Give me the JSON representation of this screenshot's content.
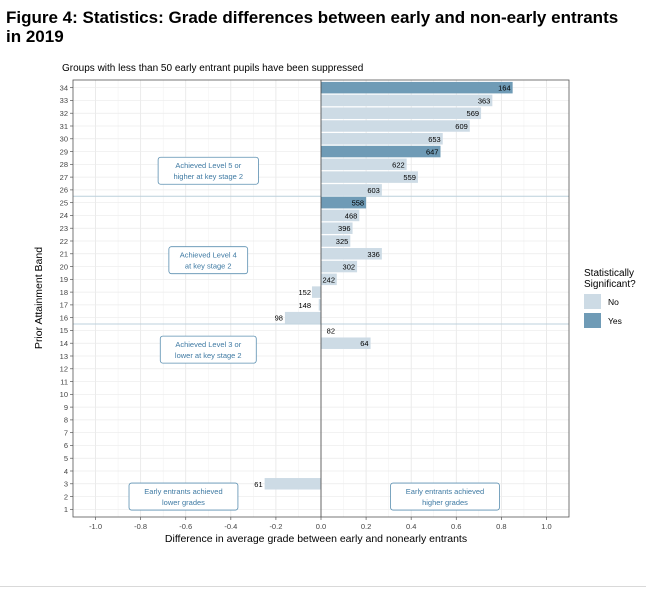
{
  "figure": {
    "title": "Figure 4: Statistics: Grade differences between early and non-early entrants in 2019"
  },
  "chart_data": {
    "type": "bar",
    "orientation": "horizontal",
    "subtitle": "Groups with less than 50 early entrant pupils have been suppressed",
    "xlabel": "Difference in average grade between early and nonearly entrants",
    "ylabel": "Prior Attainment Band",
    "xlim": [
      -1.1,
      1.1
    ],
    "xticks": [
      -1.0,
      -0.8,
      -0.6,
      -0.4,
      -0.2,
      0.0,
      0.2,
      0.4,
      0.6,
      0.8,
      1.0
    ],
    "xtick_labels": [
      "-1.0",
      "-0.8",
      "-0.6",
      "-0.4",
      "-0.2",
      "0.0",
      "0.2",
      "0.4",
      "0.6",
      "0.8",
      "1.0"
    ],
    "categories": [
      "1",
      "2",
      "3",
      "4",
      "5",
      "6",
      "7",
      "8",
      "9",
      "10",
      "11",
      "12",
      "13",
      "14",
      "15",
      "16",
      "17",
      "18",
      "19",
      "20",
      "21",
      "22",
      "23",
      "24",
      "25",
      "26",
      "27",
      "28",
      "29",
      "30",
      "31",
      "32",
      "33",
      "34"
    ],
    "grid": true,
    "legend": {
      "title": "Statistically Significant?",
      "position": "right",
      "entries": [
        {
          "label": "No",
          "color": "#cddbe5"
        },
        {
          "label": "Yes",
          "color": "#6f9bb6"
        }
      ]
    },
    "bars": [
      {
        "band": "3",
        "value": -0.25,
        "label": "61",
        "significant": false
      },
      {
        "band": "14",
        "value": 0.22,
        "label": "64",
        "significant": false
      },
      {
        "band": "15",
        "value": 0.0,
        "label": "82",
        "significant": false
      },
      {
        "band": "16",
        "value": -0.16,
        "label": "98",
        "significant": false
      },
      {
        "band": "17",
        "value": -0.01,
        "label": "148",
        "significant": false
      },
      {
        "band": "18",
        "value": -0.04,
        "label": "152",
        "significant": false
      },
      {
        "band": "19",
        "value": 0.07,
        "label": "242",
        "significant": false
      },
      {
        "band": "20",
        "value": 0.16,
        "label": "302",
        "significant": false
      },
      {
        "band": "21",
        "value": 0.27,
        "label": "336",
        "significant": false
      },
      {
        "band": "22",
        "value": 0.13,
        "label": "325",
        "significant": false
      },
      {
        "band": "23",
        "value": 0.14,
        "label": "396",
        "significant": false
      },
      {
        "band": "24",
        "value": 0.17,
        "label": "468",
        "significant": false
      },
      {
        "band": "25",
        "value": 0.2,
        "label": "558",
        "significant": true
      },
      {
        "band": "26",
        "value": 0.27,
        "label": "603",
        "significant": false
      },
      {
        "band": "27",
        "value": 0.43,
        "label": "559",
        "significant": false
      },
      {
        "band": "28",
        "value": 0.38,
        "label": "622",
        "significant": false
      },
      {
        "band": "29",
        "value": 0.53,
        "label": "647",
        "significant": true
      },
      {
        "band": "30",
        "value": 0.54,
        "label": "653",
        "significant": false
      },
      {
        "band": "31",
        "value": 0.66,
        "label": "609",
        "significant": false
      },
      {
        "band": "32",
        "value": 0.71,
        "label": "569",
        "significant": false
      },
      {
        "band": "33",
        "value": 0.76,
        "label": "363",
        "significant": false
      },
      {
        "band": "34",
        "value": 0.85,
        "label": "164",
        "significant": true
      }
    ],
    "reference_lines": [
      {
        "type": "horizontal",
        "between": [
          "15",
          "16"
        ]
      },
      {
        "type": "horizontal",
        "between": [
          "25",
          "26"
        ]
      },
      {
        "type": "vertical",
        "x": 0.0
      }
    ],
    "annotations": [
      {
        "text": [
          "Achieved Level 5 or",
          "higher at key stage 2"
        ],
        "x": -0.5,
        "band": 27.5
      },
      {
        "text": [
          "Achieved Level 4",
          "at key stage 2"
        ],
        "x": -0.5,
        "band": 20.5
      },
      {
        "text": [
          "Achieved Level 3 or",
          "lower at key stage 2"
        ],
        "x": -0.5,
        "band": 13.5
      },
      {
        "text": [
          "Early entrants achieved",
          "lower grades"
        ],
        "x": -0.61,
        "band": 2.0
      },
      {
        "text": [
          "Early entrants achieved",
          "higher grades"
        ],
        "x": 0.55,
        "band": 2.0
      }
    ]
  }
}
